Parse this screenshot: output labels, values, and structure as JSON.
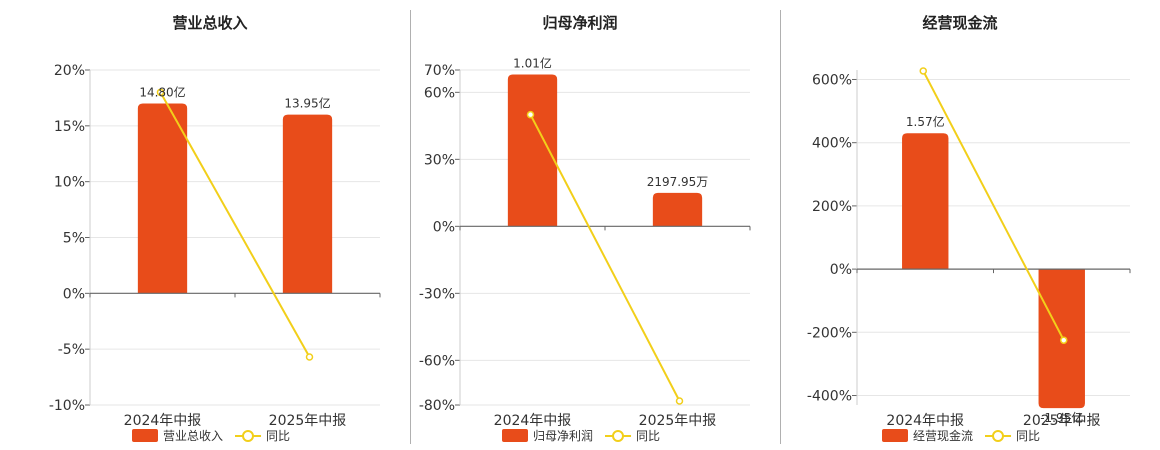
{
  "colors": {
    "bar": "#E84C1A",
    "line": "#F2CF1A",
    "grid": "#e6e6e6",
    "axis": "#666666",
    "text": "#333333"
  },
  "legend": {
    "position": "bottom"
  },
  "chart_data": [
    {
      "type": "bar",
      "title": "营业总收入",
      "categories": [
        "2024年中报",
        "2025年中报"
      ],
      "ylim": [
        -10,
        20
      ],
      "yticks": [
        -10,
        -5,
        0,
        5,
        10,
        15,
        20
      ],
      "ytick_labels": [
        "-10%",
        "-5%",
        "0%",
        "5%",
        "10%",
        "15%",
        "20%"
      ],
      "series": [
        {
          "name": "营业总收入",
          "type": "bar",
          "values": [
            17.0,
            16.0
          ],
          "labels": [
            "14.80亿",
            "13.95亿"
          ]
        },
        {
          "name": "同比",
          "type": "line",
          "values": [
            18.0,
            -5.7
          ]
        }
      ]
    },
    {
      "type": "bar",
      "title": "归母净利润",
      "categories": [
        "2024年中报",
        "2025年中报"
      ],
      "ylim": [
        -80,
        70
      ],
      "yticks": [
        -80,
        -60,
        -30,
        0,
        30,
        60,
        70
      ],
      "ytick_labels": [
        "-80%",
        "-60%",
        "-30%",
        "0%",
        "30%",
        "60%",
        "70%"
      ],
      "series": [
        {
          "name": "归母净利润",
          "type": "bar",
          "values": [
            68.0,
            15.0
          ],
          "labels": [
            "1.01亿",
            "2197.95万"
          ]
        },
        {
          "name": "同比",
          "type": "line",
          "values": [
            50.0,
            -78.2
          ]
        }
      ]
    },
    {
      "type": "bar",
      "title": "经营现金流",
      "categories": [
        "2024年中报",
        "2025年中报"
      ],
      "ylim": [
        -430,
        630
      ],
      "yticks": [
        -400,
        -200,
        0,
        200,
        400,
        600
      ],
      "ytick_labels": [
        "-400%",
        "-200%",
        "0%",
        "200%",
        "400%",
        "600%"
      ],
      "series": [
        {
          "name": "经营现金流",
          "type": "bar",
          "values": [
            430,
            -440
          ],
          "labels": [
            "1.57亿",
            "-1.95亿"
          ]
        },
        {
          "name": "同比",
          "type": "line",
          "values": [
            627,
            -225
          ]
        }
      ]
    }
  ]
}
